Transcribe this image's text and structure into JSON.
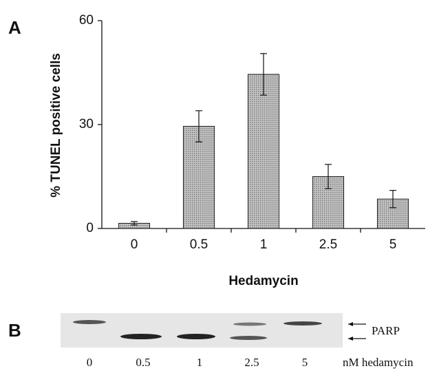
{
  "panel_a": {
    "label": "A"
  },
  "chart_data": {
    "type": "bar",
    "ylabel": "% TUNEL positive cells",
    "xlabel": "Hedamycin",
    "categories": [
      "0",
      "0.5",
      "1",
      "2.5",
      "5"
    ],
    "values": [
      1.5,
      29.5,
      44.5,
      15,
      8.5
    ],
    "errors": [
      0.5,
      4.5,
      6,
      3.5,
      2.5
    ],
    "color": "#a8a8a8",
    "ylim": [
      0,
      60
    ],
    "yticks": [
      0,
      30,
      60
    ],
    "grid": false
  },
  "panel_b": {
    "label": "B",
    "lanes": [
      "0",
      "0.5",
      "1",
      "2.5",
      "5"
    ],
    "lane_unit": "nM hedamycin",
    "band_label": "PARP"
  }
}
